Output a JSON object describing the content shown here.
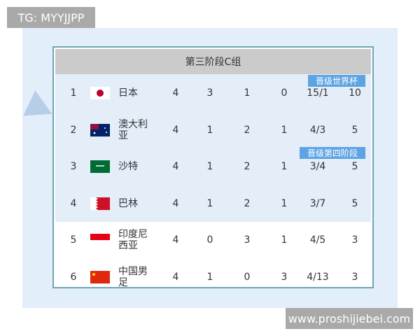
{
  "watermarks": {
    "top_left": "TG: MYYJJPP",
    "bottom_right": "www.proshijiebei.com"
  },
  "table": {
    "title": "第三阶段C组",
    "badges": {
      "world_cup": "晋级世界杯",
      "fourth_stage": "晋级第四阶段"
    },
    "rows": [
      {
        "rank": "1",
        "flag": "japan-flag",
        "team": "日本",
        "played": "4",
        "won": "3",
        "drawn": "1",
        "lost": "0",
        "goals": "15/1",
        "points": "10"
      },
      {
        "rank": "2",
        "flag": "australia-flag",
        "team": "澳大利亚",
        "played": "4",
        "won": "1",
        "drawn": "2",
        "lost": "1",
        "goals": "4/3",
        "points": "5"
      },
      {
        "rank": "3",
        "flag": "saudi-arabia-flag",
        "team": "沙特",
        "played": "4",
        "won": "1",
        "drawn": "2",
        "lost": "1",
        "goals": "3/4",
        "points": "5"
      },
      {
        "rank": "4",
        "flag": "bahrain-flag",
        "team": "巴林",
        "played": "4",
        "won": "1",
        "drawn": "2",
        "lost": "1",
        "goals": "3/7",
        "points": "5"
      },
      {
        "rank": "5",
        "flag": "indonesia-flag",
        "team": "印度尼西亚",
        "played": "4",
        "won": "0",
        "drawn": "3",
        "lost": "1",
        "goals": "4/5",
        "points": "3"
      },
      {
        "rank": "6",
        "flag": "china-flag",
        "team": "中国男足",
        "played": "4",
        "won": "1",
        "drawn": "0",
        "lost": "3",
        "goals": "4/13",
        "points": "3"
      }
    ]
  },
  "colors": {
    "header": "#cbcbcb",
    "badge": "#5ea3e4",
    "row_blue": "#e3eef9",
    "border": "#6ea6b3"
  }
}
